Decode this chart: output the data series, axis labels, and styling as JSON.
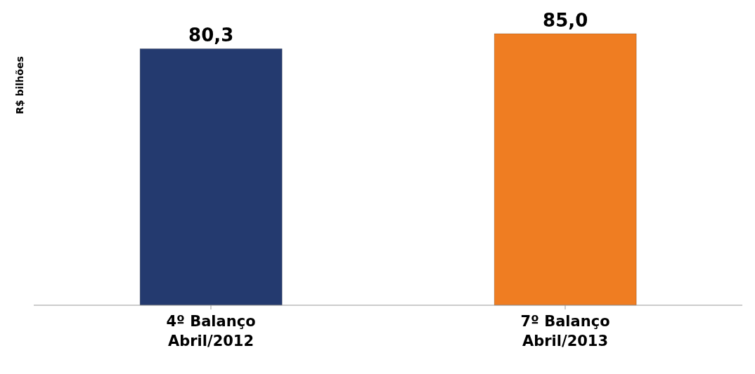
{
  "chart_data": {
    "type": "bar",
    "ylabel": "R$ bilhões",
    "categories": [
      "4º Balanço\nAbril/2012",
      "7º Balanço\nAbril/2013"
    ],
    "values": [
      80.3,
      85.0
    ],
    "colors": [
      "#243a6f",
      "#ef7d22"
    ],
    "value_labels": [
      "80,3",
      "85,0"
    ],
    "relative": false
  }
}
